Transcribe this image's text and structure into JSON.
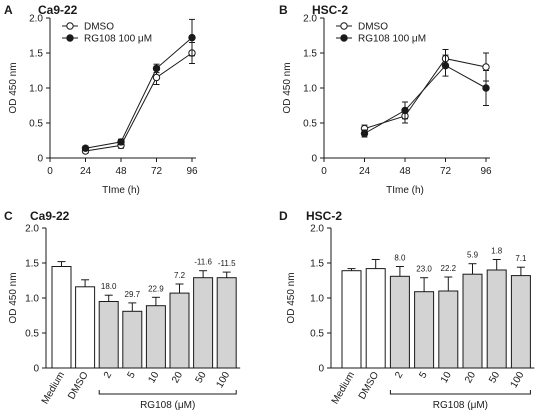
{
  "chart_data": [
    {
      "panel": "A",
      "type": "line",
      "title": "Ca9-22",
      "xlabel": "TIme (h)",
      "ylabel": "OD 450 nm",
      "xlim": [
        0,
        96
      ],
      "ylim": [
        0,
        2.0
      ],
      "xticks": [
        0,
        24,
        48,
        72,
        96
      ],
      "yticks": [
        "0",
        "0.5",
        "1.0",
        "1.5",
        "2.0"
      ],
      "grid": false,
      "legend": "top-left",
      "x": [
        24,
        48,
        72,
        96
      ],
      "series": [
        {
          "name": "DMSO",
          "marker": "open-circle",
          "values": [
            0.1,
            0.18,
            1.15,
            1.5
          ],
          "errors": [
            0.03,
            0.04,
            0.1,
            0.15
          ]
        },
        {
          "name": "RG108 100 μM",
          "marker": "filled-circle",
          "values": [
            0.14,
            0.23,
            1.28,
            1.72
          ],
          "errors": [
            0.03,
            0.04,
            0.06,
            0.26
          ]
        }
      ]
    },
    {
      "panel": "B",
      "type": "line",
      "title": "HSC-2",
      "xlabel": "TIme (h)",
      "ylabel": "OD 450 nm",
      "xlim": [
        0,
        96
      ],
      "ylim": [
        0,
        2.0
      ],
      "xticks": [
        0,
        24,
        48,
        72,
        96
      ],
      "yticks": [
        "0",
        "0.5",
        "1.0",
        "1.5",
        "2.0"
      ],
      "grid": false,
      "legend": "top-left",
      "x": [
        24,
        48,
        72,
        96
      ],
      "series": [
        {
          "name": "DMSO",
          "marker": "open-circle",
          "values": [
            0.42,
            0.6,
            1.42,
            1.3
          ],
          "errors": [
            0.05,
            0.1,
            0.13,
            0.2
          ]
        },
        {
          "name": "RG108 100 μM",
          "marker": "filled-circle",
          "values": [
            0.35,
            0.68,
            1.32,
            1.0
          ],
          "errors": [
            0.05,
            0.12,
            0.15,
            0.25
          ]
        }
      ]
    },
    {
      "panel": "C",
      "type": "bar",
      "title": "Ca9-22",
      "ylabel": "OD 450 nm",
      "ylim": [
        0,
        2.0
      ],
      "yticks": [
        "0",
        "0.5",
        "1.0",
        "1.5",
        "2.0"
      ],
      "grid": false,
      "categories": [
        "Medium",
        "DMSO",
        "2",
        "5",
        "10",
        "20",
        "50",
        "100"
      ],
      "values": [
        1.45,
        1.16,
        0.95,
        0.81,
        0.89,
        1.07,
        1.29,
        1.29
      ],
      "errors": [
        0.07,
        0.1,
        0.09,
        0.12,
        0.12,
        0.13,
        0.1,
        0.08
      ],
      "fills": [
        "#ffffff",
        "#ffffff",
        "#d3d3d3",
        "#d3d3d3",
        "#d3d3d3",
        "#d3d3d3",
        "#d3d3d3",
        "#d3d3d3"
      ],
      "annotations": [
        "",
        "",
        "18.0",
        "29.7",
        "22.9",
        "7.2",
        "-11.6",
        "-11.5"
      ],
      "group_label": "RG108  (μM)"
    },
    {
      "panel": "D",
      "type": "bar",
      "title": "HSC-2",
      "ylabel": "OD 450 nm",
      "ylim": [
        0,
        2.0
      ],
      "yticks": [
        "0",
        "0.5",
        "1.0",
        "1.5",
        "2.0"
      ],
      "grid": false,
      "categories": [
        "Medium",
        "DMSO",
        "2",
        "5",
        "10",
        "20",
        "50",
        "100"
      ],
      "values": [
        1.39,
        1.42,
        1.31,
        1.09,
        1.1,
        1.34,
        1.4,
        1.32
      ],
      "errors": [
        0.03,
        0.13,
        0.14,
        0.2,
        0.2,
        0.15,
        0.15,
        0.12
      ],
      "fills": [
        "#ffffff",
        "#ffffff",
        "#d3d3d3",
        "#d3d3d3",
        "#d3d3d3",
        "#d3d3d3",
        "#d3d3d3",
        "#d3d3d3"
      ],
      "annotations": [
        "",
        "",
        "8.0",
        "23.0",
        "22.2",
        "5.9",
        "1.8",
        "7.1"
      ],
      "group_label": "RG108  (μM)"
    }
  ]
}
